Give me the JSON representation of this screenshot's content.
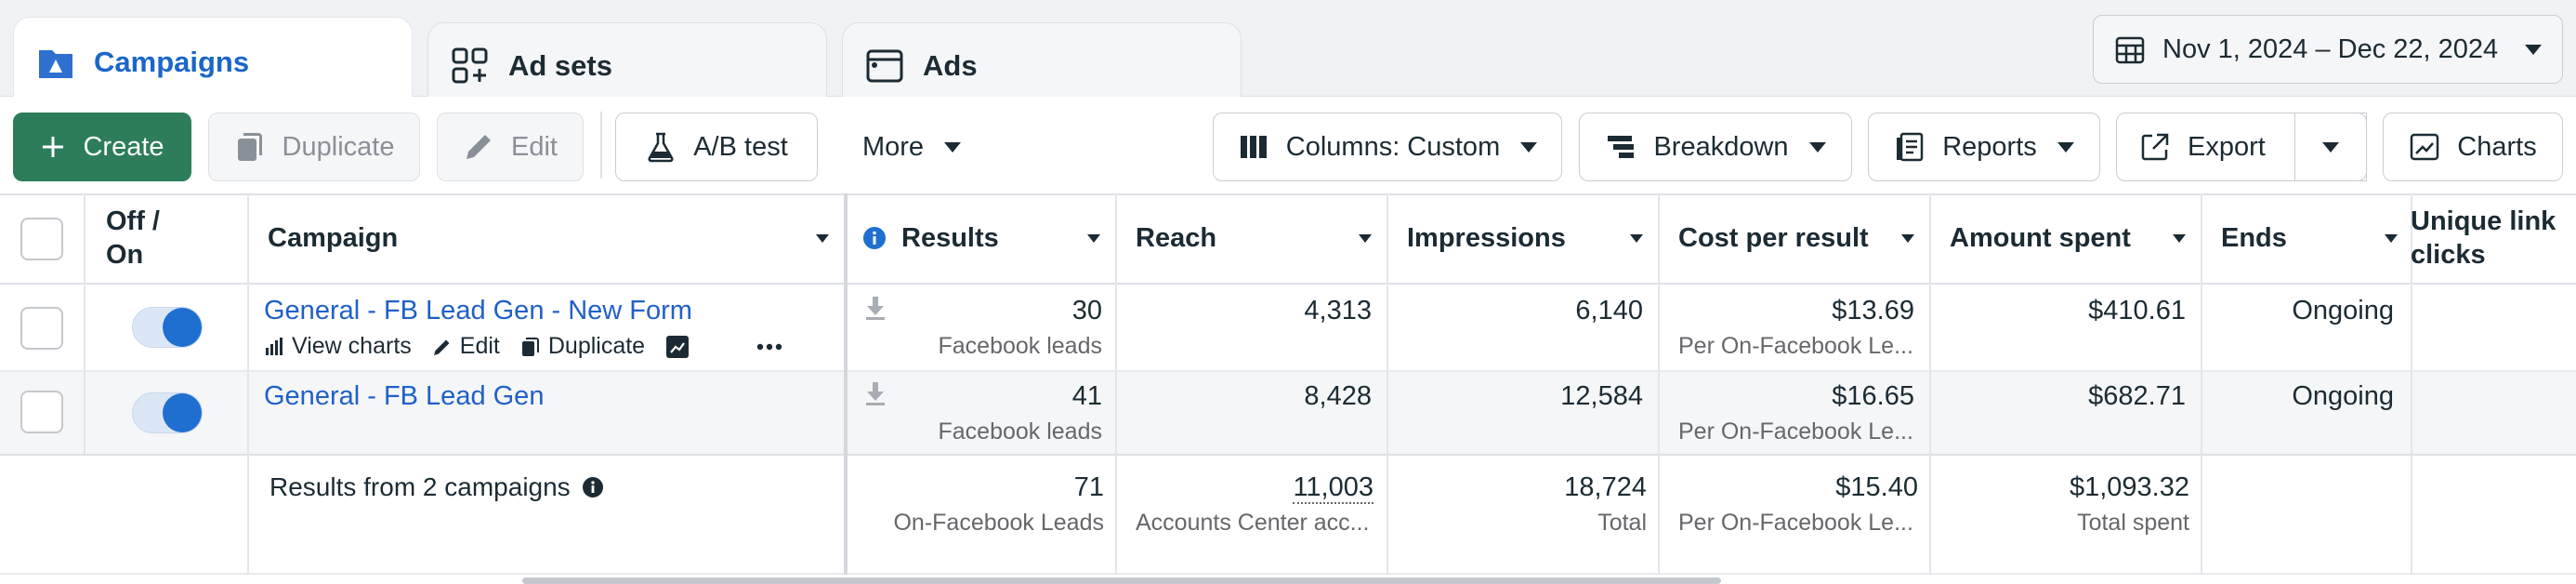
{
  "tabs": [
    {
      "label": "Campaigns",
      "icon": "campaign-folder-icon",
      "active": true
    },
    {
      "label": "Ad sets",
      "icon": "ad-sets-grid-icon",
      "active": false
    },
    {
      "label": "Ads",
      "icon": "ads-window-icon",
      "active": false
    }
  ],
  "date_range": {
    "label": "Nov 1, 2024 – Dec 22, 2024",
    "icon": "calendar-icon"
  },
  "toolbar": {
    "create": "Create",
    "duplicate": "Duplicate",
    "edit": "Edit",
    "ab_test": "A/B test",
    "more": "More",
    "columns": "Columns: Custom",
    "breakdown": "Breakdown",
    "reports": "Reports",
    "export": "Export",
    "charts": "Charts"
  },
  "columns": {
    "off_on": "Off / On",
    "campaign": "Campaign",
    "results": "Results",
    "reach": "Reach",
    "impressions": "Impressions",
    "cost_per_result": "Cost per result",
    "amount_spent": "Amount spent",
    "ends": "Ends",
    "unique_link_clicks": "Unique link clicks"
  },
  "row_actions": {
    "view_charts": "View charts",
    "edit": "Edit",
    "duplicate": "Duplicate"
  },
  "rows": [
    {
      "name": "General - FB Lead Gen - New Form",
      "on": true,
      "results": "30",
      "results_sub": "Facebook leads",
      "reach": "4,313",
      "impressions": "6,140",
      "cost_per_result": "$13.69",
      "cost_sub": "Per On-Facebook Le...",
      "amount_spent": "$410.61",
      "ends": "Ongoing"
    },
    {
      "name": "General - FB Lead Gen",
      "on": true,
      "results": "41",
      "results_sub": "Facebook leads",
      "reach": "8,428",
      "impressions": "12,584",
      "cost_per_result": "$16.65",
      "cost_sub": "Per On-Facebook Le...",
      "amount_spent": "$682.71",
      "ends": "Ongoing"
    }
  ],
  "summary": {
    "label": "Results from 2 campaigns",
    "results": "71",
    "results_sub": "On-Facebook Leads",
    "reach": "11,003",
    "reach_sub": "Accounts Center acc...",
    "impressions": "18,724",
    "impressions_sub": "Total",
    "cost_per_result": "$15.40",
    "cost_sub": "Per On-Facebook Le...",
    "amount_spent": "$1,093.32",
    "amount_sub": "Total spent"
  },
  "colors": {
    "accent": "#1a66c9",
    "create": "#2d7d5a",
    "link": "#2060c8",
    "toggle_on": "#1f6fd1"
  }
}
